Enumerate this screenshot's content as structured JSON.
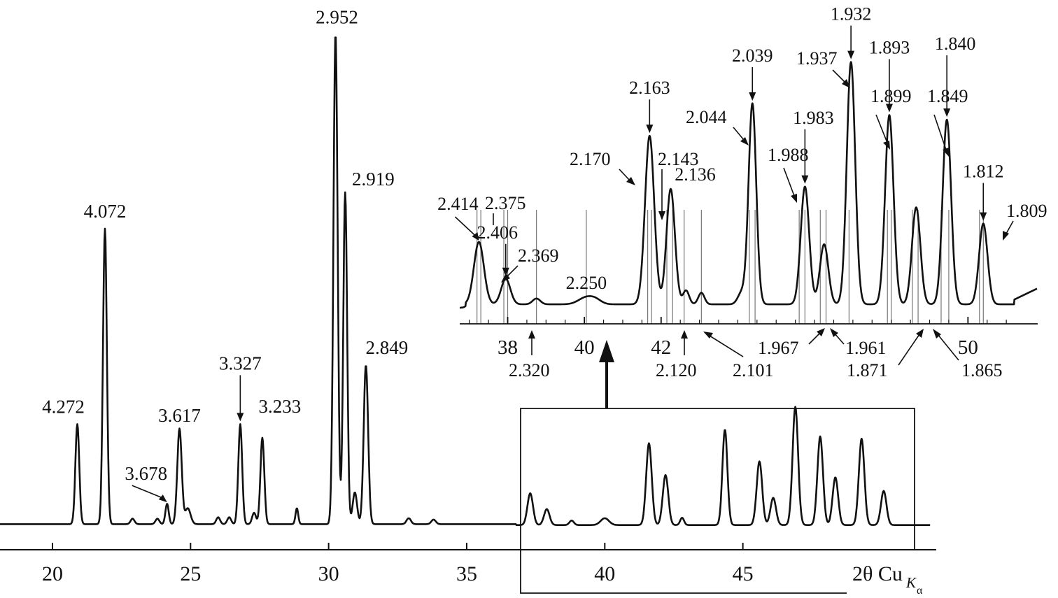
{
  "chart_data": [
    {
      "type": "line",
      "title": "",
      "xlabel": {
        "main": "2θ Cu",
        "sub": "K",
        "subsub": "α"
      },
      "ylabel": "",
      "xlim": [
        18.1,
        51.8
      ],
      "ylim": [
        0,
        100
      ],
      "x_ticks": [
        20,
        25,
        30,
        35,
        40,
        45
      ],
      "x_tick_labels": [
        "20",
        "25",
        "30",
        "35",
        "40",
        "45"
      ],
      "grid": false,
      "peaks": [
        {
          "x": 20.9,
          "y": 22,
          "w": 0.07,
          "label": "4.272"
        },
        {
          "x": 21.9,
          "y": 65,
          "w": 0.07,
          "label": "4.072"
        },
        {
          "x": 22.9,
          "y": 1.2,
          "w": 0.07,
          "label": ""
        },
        {
          "x": 23.8,
          "y": 1.2,
          "w": 0.07,
          "label": ""
        },
        {
          "x": 24.15,
          "y": 4.5,
          "w": 0.06,
          "label": "3.678"
        },
        {
          "x": 24.6,
          "y": 21,
          "w": 0.08,
          "label": "3.617"
        },
        {
          "x": 24.9,
          "y": 3.5,
          "w": 0.1,
          "label": ""
        },
        {
          "x": 26.0,
          "y": 1.5,
          "w": 0.07,
          "label": ""
        },
        {
          "x": 26.4,
          "y": 1.5,
          "w": 0.07,
          "label": ""
        },
        {
          "x": 26.8,
          "y": 22,
          "w": 0.07,
          "label": "3.327"
        },
        {
          "x": 27.3,
          "y": 2.5,
          "w": 0.07,
          "label": ""
        },
        {
          "x": 27.6,
          "y": 19,
          "w": 0.07,
          "label": "3.233"
        },
        {
          "x": 28.85,
          "y": 3.5,
          "w": 0.05,
          "label": ""
        },
        {
          "x": 30.25,
          "y": 108,
          "w": 0.075,
          "label": "2.952"
        },
        {
          "x": 30.6,
          "y": 73,
          "w": 0.07,
          "label": "2.919"
        },
        {
          "x": 30.95,
          "y": 7,
          "w": 0.08,
          "label": ""
        },
        {
          "x": 31.35,
          "y": 35,
          "w": 0.08,
          "label": "2.849"
        },
        {
          "x": 32.9,
          "y": 1.3,
          "w": 0.08,
          "label": ""
        },
        {
          "x": 33.8,
          "y": 1.0,
          "w": 0.08,
          "label": ""
        },
        {
          "x": 37.3,
          "y": 7,
          "w": 0.1,
          "label": ""
        },
        {
          "x": 37.9,
          "y": 3.5,
          "w": 0.1,
          "label": ""
        },
        {
          "x": 38.8,
          "y": 1.0,
          "w": 0.08,
          "label": ""
        },
        {
          "x": 40.0,
          "y": 1.5,
          "w": 0.15,
          "label": ""
        },
        {
          "x": 41.6,
          "y": 18,
          "w": 0.1,
          "label": ""
        },
        {
          "x": 42.2,
          "y": 11,
          "w": 0.1,
          "label": ""
        },
        {
          "x": 42.8,
          "y": 1.6,
          "w": 0.07,
          "label": ""
        },
        {
          "x": 44.35,
          "y": 21,
          "w": 0.09,
          "label": ""
        },
        {
          "x": 45.6,
          "y": 14,
          "w": 0.1,
          "label": ""
        },
        {
          "x": 46.1,
          "y": 6,
          "w": 0.1,
          "label": ""
        },
        {
          "x": 46.9,
          "y": 26,
          "w": 0.1,
          "label": ""
        },
        {
          "x": 47.8,
          "y": 19.5,
          "w": 0.1,
          "label": ""
        },
        {
          "x": 48.35,
          "y": 10.5,
          "w": 0.1,
          "label": ""
        },
        {
          "x": 49.3,
          "y": 19,
          "w": 0.1,
          "label": ""
        },
        {
          "x": 50.1,
          "y": 7.5,
          "w": 0.1,
          "label": ""
        }
      ]
    },
    {
      "type": "line",
      "title": "",
      "xlabel": "",
      "ylabel": "",
      "xlim": [
        36.75,
        51.8
      ],
      "ylim": [
        0,
        100
      ],
      "x_ticks": [
        38,
        40,
        42,
        50
      ],
      "x_tick_labels": [
        "38",
        "40",
        "42",
        "50"
      ],
      "grid": false,
      "stick_positions": [
        37.2,
        37.3,
        37.9,
        38.0,
        38.75,
        40.05,
        41.65,
        41.75,
        42.15,
        42.3,
        42.6,
        43.05,
        44.3,
        44.45,
        45.6,
        45.75,
        46.15,
        46.3,
        46.9,
        47.9,
        48.0,
        48.55,
        48.7,
        49.3,
        49.5,
        50.3,
        50.4
      ],
      "peaks": [
        {
          "x": 37.25,
          "y": 27,
          "w": 0.13,
          "label": "2.414"
        },
        {
          "x": 37.95,
          "y": 11,
          "w": 0.12,
          "label": "2.406"
        },
        {
          "x": 38.75,
          "y": 2.5,
          "w": 0.1,
          "label": ""
        },
        {
          "x": 40.05,
          "y": 3,
          "w": 0.2,
          "label": "2.250"
        },
        {
          "x": 40.3,
          "y": 1.5,
          "w": 0.15,
          "label": ""
        },
        {
          "x": 41.7,
          "y": 73,
          "w": 0.12,
          "label": "2.163"
        },
        {
          "x": 42.25,
          "y": 50,
          "w": 0.11,
          "label": "2.136"
        },
        {
          "x": 42.65,
          "y": 6,
          "w": 0.08,
          "label": ""
        },
        {
          "x": 43.05,
          "y": 5,
          "w": 0.08,
          "label": ""
        },
        {
          "x": 44.1,
          "y": 5,
          "w": 0.1,
          "label": ""
        },
        {
          "x": 44.38,
          "y": 87,
          "w": 0.1,
          "label": "2.039"
        },
        {
          "x": 45.75,
          "y": 51,
          "w": 0.11,
          "label": "1.983"
        },
        {
          "x": 46.25,
          "y": 26,
          "w": 0.11,
          "label": ""
        },
        {
          "x": 46.95,
          "y": 105,
          "w": 0.11,
          "label": "1.932"
        },
        {
          "x": 47.95,
          "y": 82,
          "w": 0.11,
          "label": "1.893"
        },
        {
          "x": 48.65,
          "y": 42,
          "w": 0.11,
          "label": ""
        },
        {
          "x": 49.45,
          "y": 80,
          "w": 0.11,
          "label": "1.840"
        },
        {
          "x": 50.4,
          "y": 35,
          "w": 0.11,
          "label": "1.812"
        }
      ]
    }
  ],
  "annotations": [
    "2.375",
    "2.369",
    "2.170",
    "2.143",
    "2.044",
    "1.988",
    "1.937",
    "1.899",
    "1.849",
    "1.809",
    "2.320",
    "2.120",
    "2.101",
    "1.967",
    "1.961",
    "1.871",
    "1.865"
  ]
}
